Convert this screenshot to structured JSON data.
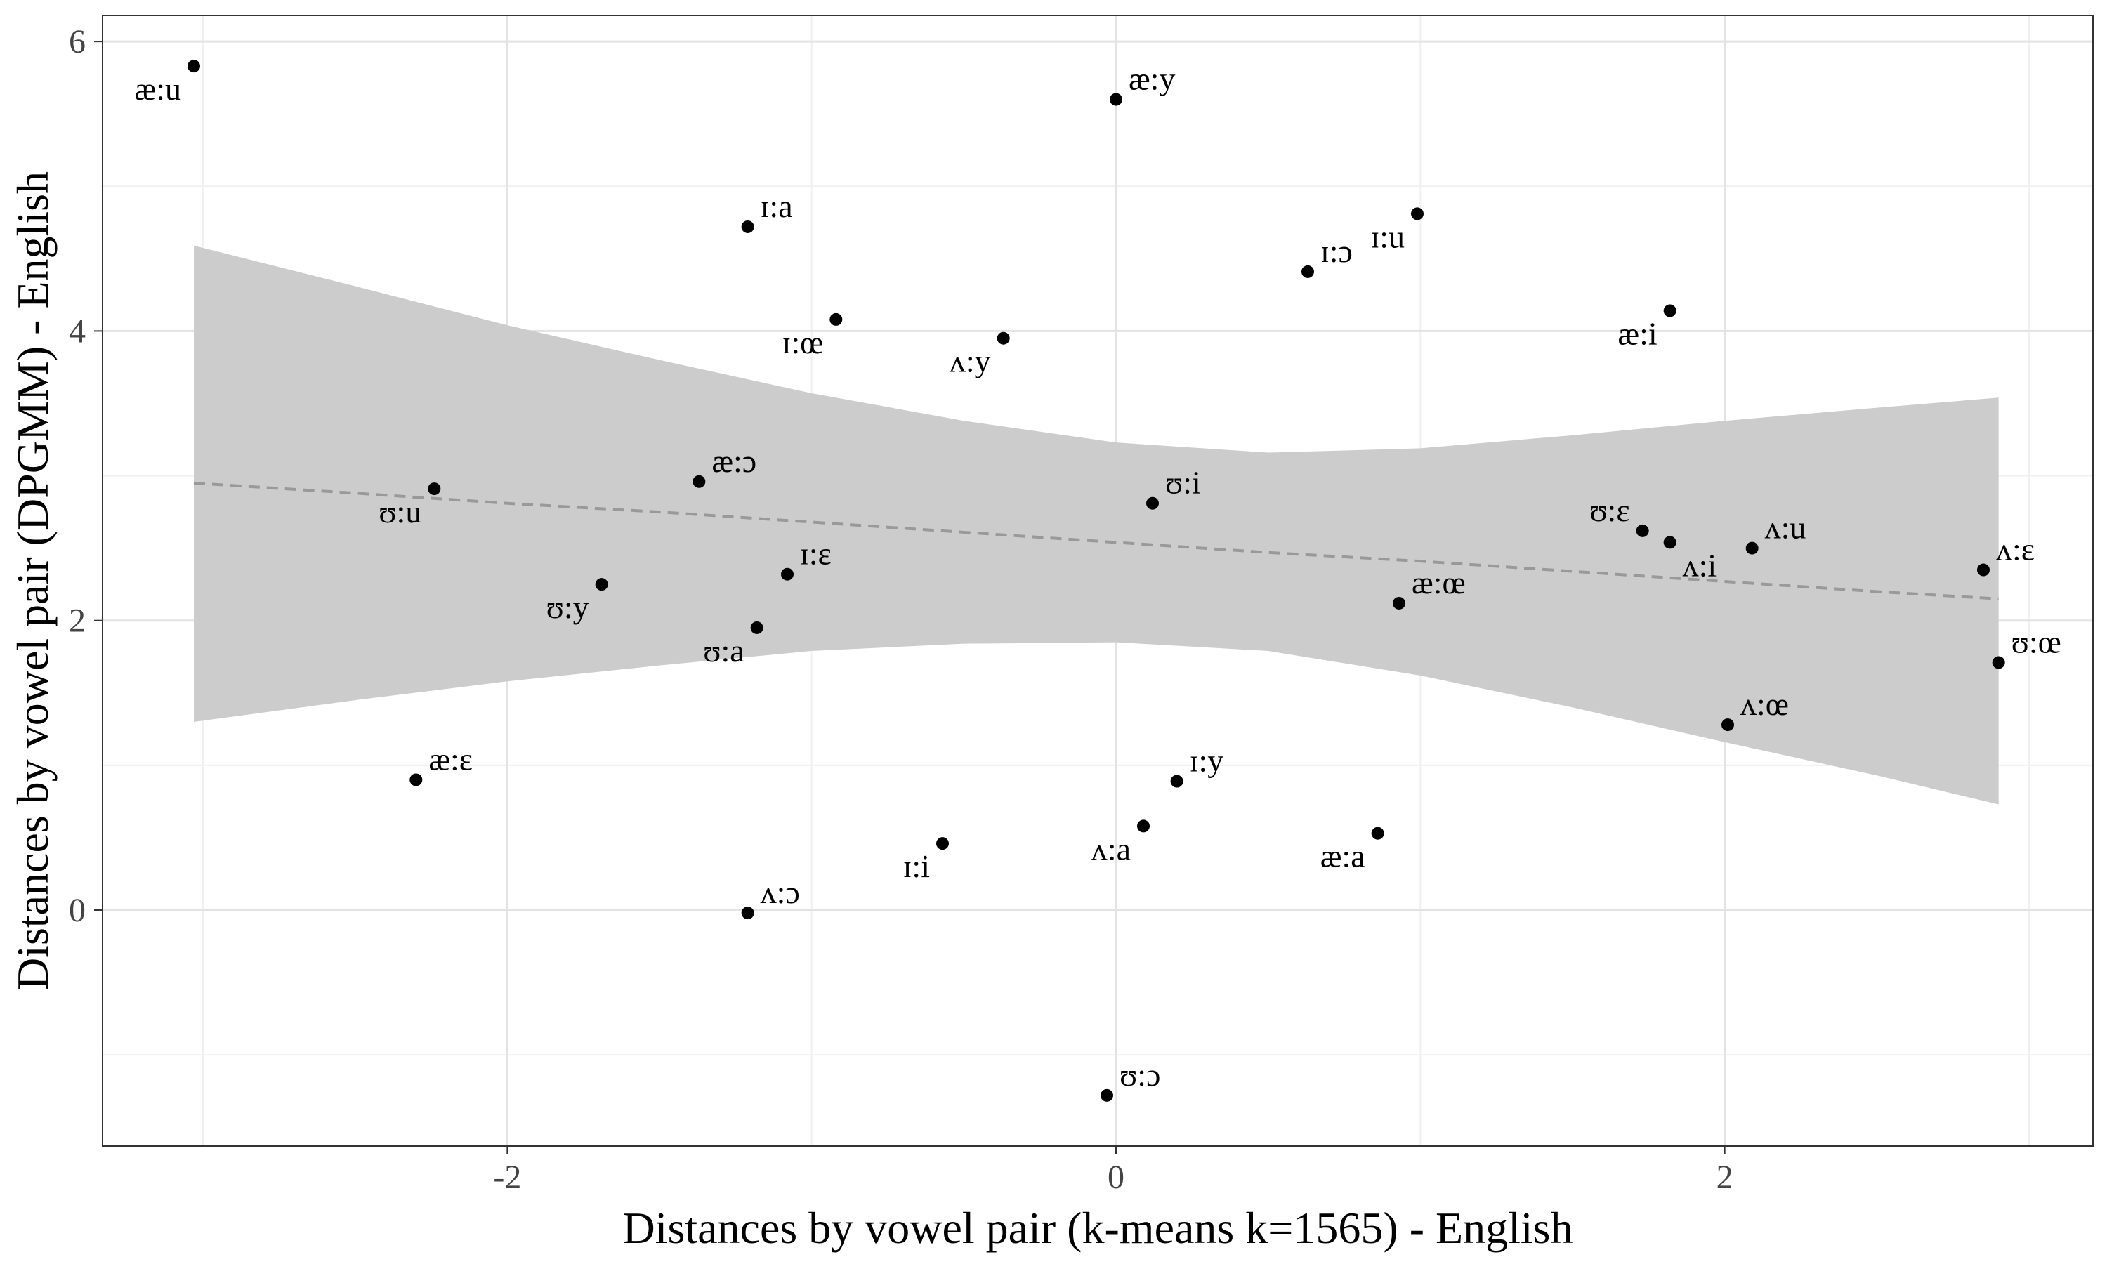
{
  "chart_data": {
    "type": "scatter",
    "title": "",
    "xlabel": "Distances by vowel pair (k-means k=1565) - English",
    "ylabel": "Distances by vowel pair (DPGMM) - English",
    "xlim": [
      -3.33,
      3.21
    ],
    "ylim": [
      -1.63,
      6.18
    ],
    "x_ticks": [
      -2,
      0,
      2
    ],
    "y_ticks": [
      0,
      2,
      4,
      6
    ],
    "x_tick_labels": [
      "-2",
      "0",
      "2"
    ],
    "y_tick_labels": [
      "0",
      "2",
      "4",
      "6"
    ],
    "grid": true,
    "legend": "none",
    "points": [
      {
        "label": "æ:u",
        "x": -3.03,
        "y": 5.83,
        "label_pos": "below-left"
      },
      {
        "label": "æ:y",
        "x": 0.0,
        "y": 5.6,
        "label_pos": "above-right"
      },
      {
        "label": "ɪ:a",
        "x": -1.21,
        "y": 4.72,
        "label_pos": "above-right"
      },
      {
        "label": "ɪ:u",
        "x": 0.99,
        "y": 4.81,
        "label_pos": "below-left"
      },
      {
        "label": "ɪ:ɔ",
        "x": 0.63,
        "y": 4.41,
        "label_pos": "above-right"
      },
      {
        "label": "ɪ:œ",
        "x": -0.92,
        "y": 4.08,
        "label_pos": "below-left"
      },
      {
        "label": "ʌ:y",
        "x": -0.37,
        "y": 3.95,
        "label_pos": "below-left"
      },
      {
        "label": "æ:i",
        "x": 1.82,
        "y": 4.14,
        "label_pos": "below-left"
      },
      {
        "label": "ʊ:u",
        "x": -2.24,
        "y": 2.91,
        "label_pos": "below-left"
      },
      {
        "label": "æ:ɔ",
        "x": -1.37,
        "y": 2.96,
        "label_pos": "above-right"
      },
      {
        "label": "ʊ:i",
        "x": 0.12,
        "y": 2.81,
        "label_pos": "above-right"
      },
      {
        "label": "ʊ:ɛ",
        "x": 1.73,
        "y": 2.62,
        "label_pos": "above-left"
      },
      {
        "label": "ʌ:i",
        "x": 1.82,
        "y": 2.54,
        "label_pos": "below-right"
      },
      {
        "label": "ʌ:u",
        "x": 2.09,
        "y": 2.5,
        "label_pos": "above-right"
      },
      {
        "label": "ʌ:ɛ",
        "x": 2.85,
        "y": 2.35,
        "label_pos": "above-right"
      },
      {
        "label": "ɪ:ɛ",
        "x": -1.08,
        "y": 2.32,
        "label_pos": "above-right"
      },
      {
        "label": "ʊ:y",
        "x": -1.69,
        "y": 2.25,
        "label_pos": "below-left"
      },
      {
        "label": "æ:œ",
        "x": 0.93,
        "y": 2.12,
        "label_pos": "above-right"
      },
      {
        "label": "ʊ:a",
        "x": -1.18,
        "y": 1.95,
        "label_pos": "below-left"
      },
      {
        "label": "ʊ:œ",
        "x": 2.9,
        "y": 1.71,
        "label_pos": "above-right"
      },
      {
        "label": "ʌ:œ",
        "x": 2.01,
        "y": 1.28,
        "label_pos": "above-right"
      },
      {
        "label": "æ:ɛ",
        "x": -2.3,
        "y": 0.9,
        "label_pos": "above-right"
      },
      {
        "label": "ɪ:y",
        "x": 0.2,
        "y": 0.89,
        "label_pos": "above-right"
      },
      {
        "label": "ʌ:a",
        "x": 0.09,
        "y": 0.58,
        "label_pos": "below-left"
      },
      {
        "label": "æ:a",
        "x": 0.86,
        "y": 0.53,
        "label_pos": "below-left"
      },
      {
        "label": "ɪ:i",
        "x": -0.57,
        "y": 0.46,
        "label_pos": "below-left"
      },
      {
        "label": "ʌ:ɔ",
        "x": -1.21,
        "y": -0.02,
        "label_pos": "above-right"
      },
      {
        "label": "ʊ:ɔ",
        "x": -0.03,
        "y": -1.28,
        "label_pos": "above-right"
      }
    ],
    "trend": {
      "style": "dashed",
      "x": [
        -3.03,
        -2.5,
        -2.0,
        -1.5,
        -1.0,
        -0.5,
        0.0,
        0.5,
        1.0,
        1.5,
        2.0,
        2.5,
        2.9
      ],
      "y": [
        2.95,
        2.88,
        2.81,
        2.75,
        2.68,
        2.61,
        2.54,
        2.47,
        2.41,
        2.34,
        2.27,
        2.2,
        2.15
      ],
      "ci_lower": [
        1.3,
        1.45,
        1.58,
        1.69,
        1.79,
        1.84,
        1.85,
        1.79,
        1.62,
        1.4,
        1.16,
        0.93,
        0.73
      ],
      "ci_upper": [
        4.59,
        4.31,
        4.04,
        3.8,
        3.57,
        3.38,
        3.23,
        3.16,
        3.19,
        3.28,
        3.38,
        3.47,
        3.54
      ]
    },
    "colors": {
      "points": "#000000",
      "ribbon": "#cccccc",
      "trend_line": "#999999",
      "grid_major": "#e3e3e3",
      "grid_minor": "#f0f0f0",
      "border": "#333333"
    }
  }
}
